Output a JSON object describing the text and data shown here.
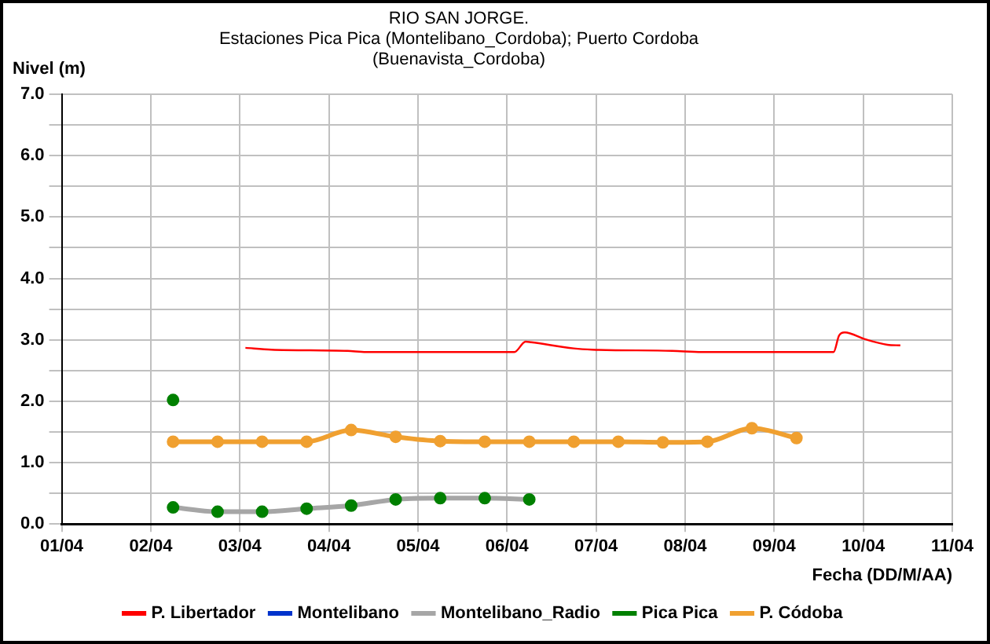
{
  "chart_data": {
    "type": "line",
    "title": "RIO SAN JORGE.\nEstaciones Pica Pica (Montelibano_Cordoba); Puerto Cordoba (Buenavista_Cordoba)",
    "xlabel": "Fecha (DD/M/AA)",
    "ylabel": "Nivel (m)",
    "xlim": [
      "--04-01",
      "--04-11"
    ],
    "xticks": [
      {
        "value": "--04-01",
        "label": "01/04"
      },
      {
        "value": "--04-02",
        "label": "02/04"
      },
      {
        "value": "--04-03",
        "label": "03/04"
      },
      {
        "value": "--04-04",
        "label": "04/04"
      },
      {
        "value": "--04-05",
        "label": "05/04"
      },
      {
        "value": "--04-06",
        "label": "06/04"
      },
      {
        "value": "--04-07",
        "label": "07/04"
      },
      {
        "value": "--04-08",
        "label": "08/04"
      },
      {
        "value": "--04-09",
        "label": "09/04"
      },
      {
        "value": "--04-10",
        "label": "10/04"
      },
      {
        "value": "--04-11",
        "label": "11/04"
      }
    ],
    "ylim": [
      0,
      7
    ],
    "yticks": [
      {
        "value": 0,
        "label": "0.0"
      },
      {
        "value": 0.5,
        "label": null
      },
      {
        "value": 1,
        "label": "1.0"
      },
      {
        "value": 1.5,
        "label": null
      },
      {
        "value": 2,
        "label": "2.0"
      },
      {
        "value": 2.5,
        "label": null
      },
      {
        "value": 3,
        "label": "3.0"
      },
      {
        "value": 3.5,
        "label": null
      },
      {
        "value": 4,
        "label": "4.0"
      },
      {
        "value": 4.5,
        "label": null
      },
      {
        "value": 5,
        "label": "5.0"
      },
      {
        "value": 5.5,
        "label": null
      },
      {
        "value": 6,
        "label": "6.0"
      },
      {
        "value": 6.5,
        "label": null
      },
      {
        "value": 7,
        "label": "7.0"
      }
    ],
    "grid": true,
    "legend": "bottom",
    "series": [
      {
        "name": "P. Libertador",
        "color": "#ff0000",
        "marker": "none",
        "x": [
          "--04-03T01:30",
          "--04-03T08:30",
          "--04-04T05:00",
          "--04-04T10:00",
          "--04-06T02:00",
          "--04-06T05:00",
          "--04-06T06:30",
          "--04-06T18:00",
          "--04-06T23:00",
          "--04-07T20:30",
          "--04-08T04:30",
          "--04-09T16:00",
          "--04-09T17:30",
          "--04-09T19:00",
          "--04-10T00:30",
          "--04-10T06:30",
          "--04-10T10:00"
        ],
        "values": [
          2.87,
          2.84,
          2.82,
          2.8,
          2.8,
          2.97,
          2.96,
          2.86,
          2.84,
          2.82,
          2.8,
          2.8,
          3.07,
          3.12,
          3.01,
          2.92,
          2.91
        ]
      },
      {
        "name": "Montelibano",
        "color": "#0033cc",
        "marker": "none"
      },
      {
        "name": "Montelibano_Radio",
        "color": "#a6a6a6",
        "marker": "circle",
        "colors": [
          "#008000",
          "#008000",
          "#008000",
          "#008000",
          "#008000",
          "#008000",
          "#008000",
          "#008000",
          "#008000"
        ],
        "x": [
          "--04-02T06:00",
          "--04-02T18:00",
          "--04-03T06:00",
          "--04-03T18:00",
          "--04-04T06:00",
          "--04-04T18:00",
          "--04-05T06:00",
          "--04-05T18:00",
          "--04-06T06:00"
        ],
        "values": [
          0.27,
          0.2,
          0.2,
          0.25,
          0.3,
          0.4,
          0.42,
          0.42,
          0.4
        ]
      },
      {
        "name": "Pica Pica",
        "color": "#008000",
        "marker": "circle",
        "x": [
          "--04-02T06:00"
        ],
        "values": [
          2.02
        ]
      },
      {
        "name": "P. Códoba",
        "color": "#f0a030",
        "marker": "circle",
        "x": [
          "--04-02T06:00",
          "--04-02T18:00",
          "--04-03T06:00",
          "--04-03T18:00",
          "--04-04T06:00",
          "--04-04T18:00",
          "--04-05T06:00",
          "--04-05T18:00",
          "--04-06T06:00",
          "--04-06T18:00",
          "--04-07T06:00",
          "--04-07T18:00",
          "--04-08T06:00",
          "--04-08T18:00",
          "--04-09T06:00"
        ],
        "values": [
          1.34,
          1.34,
          1.34,
          1.34,
          1.53,
          1.42,
          1.35,
          1.34,
          1.34,
          1.34,
          1.34,
          1.33,
          1.34,
          1.56,
          1.4
        ]
      }
    ]
  }
}
